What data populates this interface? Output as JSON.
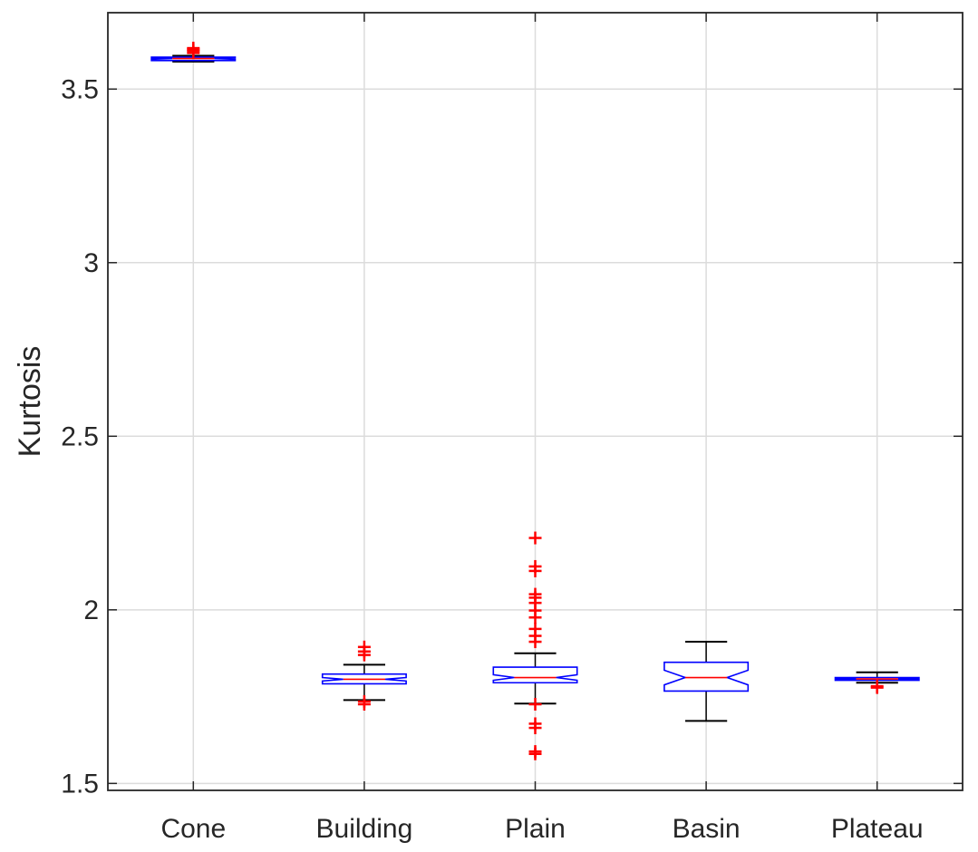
{
  "chart_data": {
    "type": "box",
    "title": "",
    "xlabel": "",
    "ylabel": "Kurtosis",
    "ylim": [
      1.48,
      3.72
    ],
    "yticks": [
      1.5,
      2,
      2.5,
      3,
      3.5
    ],
    "ytick_labels": [
      "1.5",
      "2",
      "2.5",
      "3",
      "3.5"
    ],
    "grid": true,
    "notched": true,
    "categories": [
      "Cone",
      "Building",
      "Plain",
      "Basin",
      "Plateau"
    ],
    "boxes": [
      {
        "name": "Cone",
        "q1": 3.582,
        "median": 3.588,
        "q3": 3.592,
        "notch_low": 3.586,
        "notch_high": 3.59,
        "whisker_low": 3.579,
        "whisker_high": 3.596,
        "outliers": [
          3.604,
          3.61,
          3.614,
          3.618
        ]
      },
      {
        "name": "Building",
        "q1": 1.787,
        "median": 1.8,
        "q3": 1.815,
        "notch_low": 1.795,
        "notch_high": 1.805,
        "whisker_low": 1.74,
        "whisker_high": 1.842,
        "outliers": [
          1.728,
          1.736,
          1.87,
          1.88,
          1.893
        ]
      },
      {
        "name": "Plain",
        "q1": 1.79,
        "median": 1.805,
        "q3": 1.835,
        "notch_low": 1.797,
        "notch_high": 1.813,
        "whisker_low": 1.73,
        "whisker_high": 1.875,
        "outliers": [
          1.585,
          1.592,
          1.66,
          1.672,
          1.728,
          1.908,
          1.925,
          1.945,
          1.978,
          1.998,
          2.02,
          2.035,
          2.045,
          2.112,
          2.125,
          2.207
        ]
      },
      {
        "name": "Basin",
        "q1": 1.766,
        "median": 1.805,
        "q3": 1.849,
        "notch_low": 1.784,
        "notch_high": 1.826,
        "whisker_low": 1.68,
        "whisker_high": 1.908,
        "outliers": []
      },
      {
        "name": "Plateau",
        "q1": 1.797,
        "median": 1.801,
        "q3": 1.805,
        "notch_low": 1.799,
        "notch_high": 1.803,
        "whisker_low": 1.79,
        "whisker_high": 1.82,
        "outliers": [
          1.776,
          1.78
        ]
      }
    ]
  },
  "colors": {
    "box": "#0000ff",
    "median": "#ff0000",
    "whisker": "#000000",
    "outlier": "#ff0000",
    "grid": "#dcdcdc",
    "axis": "#262626",
    "background": "#ffffff"
  }
}
